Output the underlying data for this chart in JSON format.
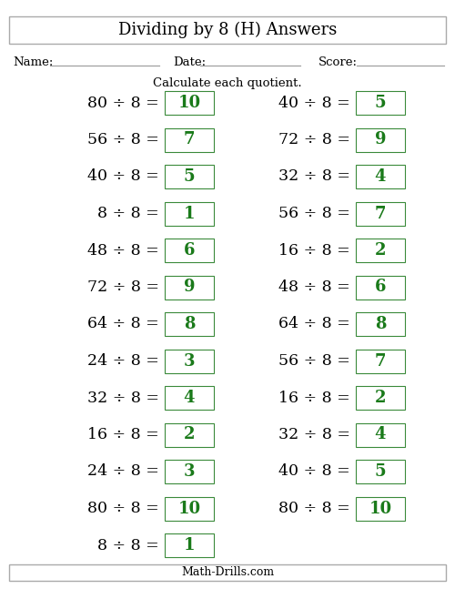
{
  "title": "Dividing by 8 (H) Answers",
  "subtitle": "Calculate each quotient.",
  "footer": "Math-Drills.com",
  "name_label": "Name:",
  "date_label": "Date:",
  "score_label": "Score:",
  "left_col": [
    {
      "expr": "80 ÷ 8 =",
      "ans": "10"
    },
    {
      "expr": "56 ÷ 8 =",
      "ans": "7"
    },
    {
      "expr": "40 ÷ 8 =",
      "ans": "5"
    },
    {
      "expr": "8 ÷ 8 =",
      "ans": "1"
    },
    {
      "expr": "48 ÷ 8 =",
      "ans": "6"
    },
    {
      "expr": "72 ÷ 8 =",
      "ans": "9"
    },
    {
      "expr": "64 ÷ 8 =",
      "ans": "8"
    },
    {
      "expr": "24 ÷ 8 =",
      "ans": "3"
    },
    {
      "expr": "32 ÷ 8 =",
      "ans": "4"
    },
    {
      "expr": "16 ÷ 8 =",
      "ans": "2"
    },
    {
      "expr": "24 ÷ 8 =",
      "ans": "3"
    },
    {
      "expr": "80 ÷ 8 =",
      "ans": "10"
    },
    {
      "expr": "8 ÷ 8 =",
      "ans": "1"
    }
  ],
  "right_col": [
    {
      "expr": "40 ÷ 8 =",
      "ans": "5"
    },
    {
      "expr": "72 ÷ 8 =",
      "ans": "9"
    },
    {
      "expr": "32 ÷ 8 =",
      "ans": "4"
    },
    {
      "expr": "56 ÷ 8 =",
      "ans": "7"
    },
    {
      "expr": "16 ÷ 8 =",
      "ans": "2"
    },
    {
      "expr": "48 ÷ 8 =",
      "ans": "6"
    },
    {
      "expr": "64 ÷ 8 =",
      "ans": "8"
    },
    {
      "expr": "56 ÷ 8 =",
      "ans": "7"
    },
    {
      "expr": "16 ÷ 8 =",
      "ans": "2"
    },
    {
      "expr": "32 ÷ 8 =",
      "ans": "4"
    },
    {
      "expr": "40 ÷ 8 =",
      "ans": "5"
    },
    {
      "expr": "80 ÷ 8 =",
      "ans": "10"
    }
  ],
  "bg_color": "#ffffff",
  "text_color": "#000000",
  "ans_color": "#1a7a1a",
  "box_edge_color": "#3a8a3a",
  "title_fontsize": 13,
  "label_fontsize": 9.5,
  "expr_fontsize": 12.5,
  "ans_fontsize": 13,
  "subtitle_fontsize": 9.5,
  "footer_fontsize": 9
}
